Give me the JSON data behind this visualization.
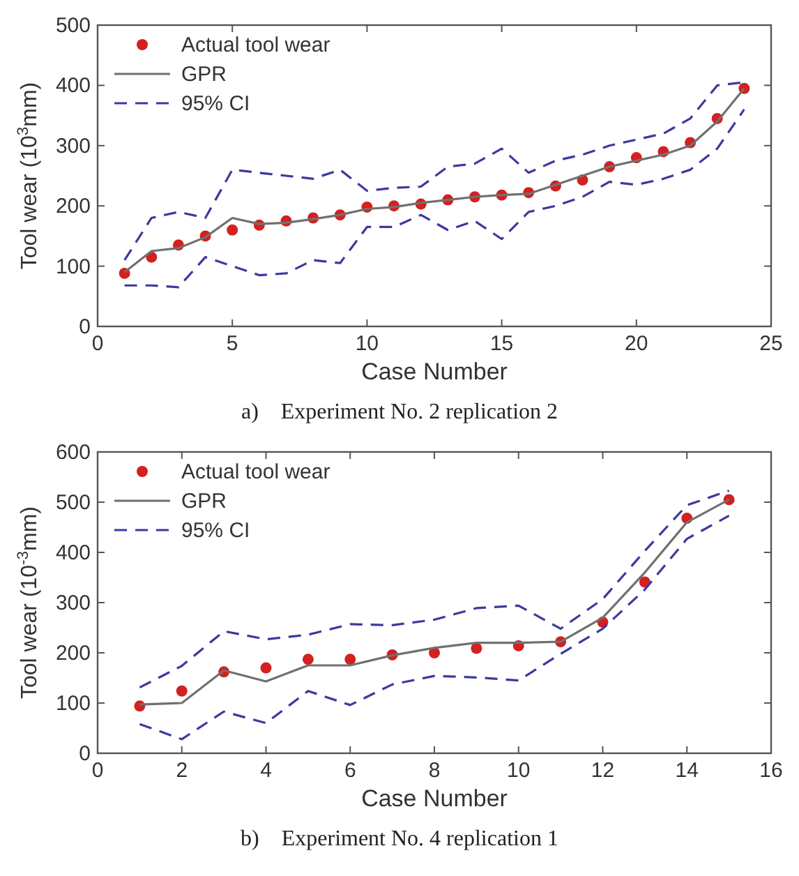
{
  "chart_data": [
    {
      "type": "line",
      "title": "a)    Experiment No. 2 replication 2",
      "xlabel": "Case Number",
      "ylabel": "Tool wear (10$^{3}$mm)",
      "xlim": [
        0,
        25
      ],
      "xticks": [
        0,
        5,
        10,
        15,
        20,
        25
      ],
      "ylim": [
        0,
        500
      ],
      "yticks": [
        0,
        100,
        200,
        300,
        400,
        500
      ],
      "legend": "top left",
      "grid": false,
      "x": [
        1,
        2,
        3,
        4,
        5,
        6,
        7,
        8,
        9,
        10,
        11,
        12,
        13,
        14,
        15,
        16,
        17,
        18,
        19,
        20,
        21,
        22,
        23,
        24
      ],
      "series": [
        {
          "name": "Actual tool wear",
          "type": "scatter",
          "marker": "circle",
          "color": "#d42020",
          "values": [
            88,
            115,
            135,
            150,
            160,
            168,
            175,
            180,
            185,
            198,
            200,
            203,
            210,
            215,
            218,
            222,
            233,
            243,
            265,
            280,
            290,
            305,
            345,
            395
          ]
        },
        {
          "name": "GPR",
          "line_style": "solid",
          "color": "#707070",
          "values": [
            90,
            125,
            130,
            148,
            180,
            170,
            172,
            178,
            185,
            195,
            198,
            205,
            210,
            215,
            218,
            220,
            235,
            250,
            265,
            275,
            285,
            300,
            340,
            395
          ]
        },
        {
          "name": "95% CI",
          "line_style": "dashed",
          "color": "#3a3aa0",
          "values": [
            110,
            180,
            190,
            180,
            260,
            255,
            250,
            245,
            260,
            225,
            230,
            232,
            265,
            270,
            295,
            255,
            275,
            285,
            300,
            310,
            320,
            345,
            400,
            405
          ]
        },
        {
          "line_style": "dashed",
          "color": "#3a3aa0",
          "values": [
            68,
            68,
            65,
            115,
            100,
            85,
            88,
            110,
            105,
            165,
            165,
            185,
            160,
            175,
            145,
            190,
            200,
            215,
            240,
            235,
            245,
            260,
            295,
            360
          ]
        }
      ]
    },
    {
      "type": "line",
      "title": "b)    Experiment No. 4 replication 1",
      "xlabel": "Case Number",
      "ylabel": "Tool wear (10$^{-3}$mm)",
      "xlim": [
        0,
        16
      ],
      "xticks": [
        0,
        2,
        4,
        6,
        8,
        10,
        12,
        14,
        16
      ],
      "ylim": [
        0,
        600
      ],
      "yticks": [
        0,
        100,
        200,
        300,
        400,
        500,
        600
      ],
      "legend": "top left",
      "grid": false,
      "x": [
        1,
        2,
        3,
        4,
        5,
        6,
        7,
        8,
        9,
        10,
        11,
        12,
        13,
        14,
        15
      ],
      "series": [
        {
          "name": "Actual tool wear",
          "type": "scatter",
          "marker": "circle",
          "color": "#d42020",
          "values": [
            94,
            124,
            162,
            170,
            187,
            187,
            196,
            200,
            209,
            214,
            222,
            261,
            341,
            468,
            505
          ]
        },
        {
          "name": "GPR",
          "line_style": "solid",
          "color": "#707070",
          "values": [
            97,
            100,
            165,
            143,
            175,
            175,
            195,
            210,
            220,
            220,
            222,
            270,
            360,
            460,
            505
          ]
        },
        {
          "name": "95% CI",
          "line_style": "dashed",
          "color": "#3a3aa0",
          "values": [
            131,
            174,
            243,
            227,
            236,
            257,
            255,
            266,
            289,
            294,
            248,
            307,
            403,
            494,
            523
          ]
        },
        {
          "line_style": "dashed",
          "color": "#3a3aa0",
          "values": [
            58,
            28,
            83,
            60,
            124,
            96,
            137,
            154,
            151,
            145,
            198,
            248,
            326,
            427,
            473
          ]
        }
      ]
    }
  ]
}
